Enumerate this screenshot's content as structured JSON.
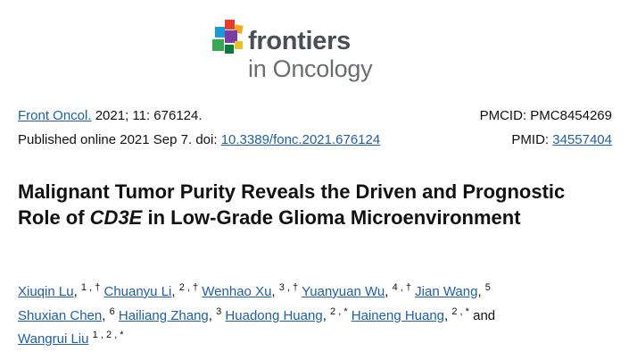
{
  "logo": {
    "brand": "frontiers",
    "subtitle": "in Oncology",
    "colors": [
      "#e63b2e",
      "#f5a623",
      "#1a9bd7",
      "#36a852",
      "#7a3ea0",
      "#0b7a3e"
    ]
  },
  "citation": {
    "journal_link": "Front Oncol.",
    "journal_details": " 2021; 11: 676124.",
    "pmcid_label": "PMCID: ",
    "pmcid_value": "PMC8454269",
    "published_prefix": "Published online 2021 Sep 7. doi: ",
    "doi_link": "10.3389/fonc.2021.676124",
    "pmid_label": "PMID: ",
    "pmid_link": "34557404"
  },
  "title": {
    "part1": "Malignant Tumor Purity Reveals the Driven and Prognostic Role of ",
    "gene": "CD3E",
    "part2": " in Low-Grade Glioma Microenvironment"
  },
  "authors": [
    {
      "name": "Xiuqin Lu",
      "sup": "1 , †",
      "sep": ", "
    },
    {
      "name": "Chuanyu Li",
      "sup": "2 , †",
      "sep": " "
    },
    {
      "name": "Wenhao Xu",
      "sup": "3 , †",
      "sep": " "
    },
    {
      "name": "Yuanyuan Wu",
      "sup": "4 , †",
      "sep": " "
    },
    {
      "name": "Jian Wang",
      "sup": "5",
      "sep": ", "
    },
    {
      "name": "Shuxian Chen",
      "sup": "6",
      "sep": ", "
    },
    {
      "name": "Hailiang Zhang",
      "sup": "3",
      "sep": ", "
    },
    {
      "name": "Huadong Huang",
      "sup": "2 , *",
      "sep": " "
    },
    {
      "name": "Haineng Huang",
      "sup": "2 , *",
      "sep": " and "
    },
    {
      "name": "Wangrui Liu",
      "sup": "1 , 2 , *",
      "sep": ""
    }
  ],
  "authors_conjunction": "and"
}
